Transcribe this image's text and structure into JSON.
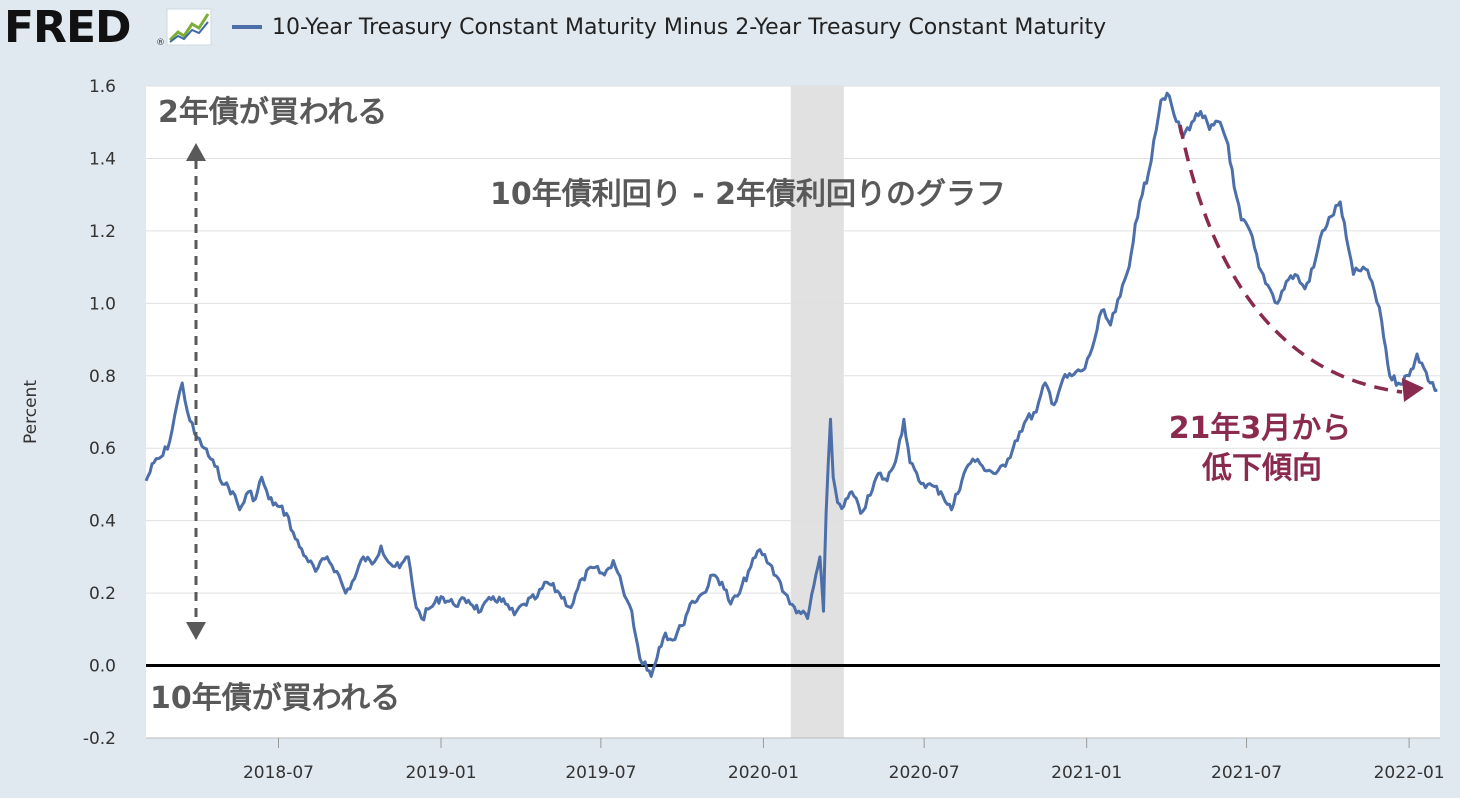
{
  "header": {
    "logo_text": "FRED",
    "logo_reg": "®",
    "logo_icon": "chart-line-icon"
  },
  "colors": {
    "series": "#4d6fa9",
    "recession": "#e1e1e1",
    "annotation_gray": "#595959",
    "annotation_red": "#8a2a4e",
    "background": "#e1e9f0"
  },
  "annotations": {
    "top_label": "2年債が買われる",
    "bottom_label": "10年債が買われる",
    "center_title": "10年債利回り - 2年債利回りのグラフ",
    "trend_line1": "21年3月から",
    "trend_line2": "低下傾向"
  },
  "chart_data": {
    "type": "line",
    "title": "",
    "xlabel": "",
    "ylabel": "Percent",
    "ylim": [
      -0.2,
      1.6
    ],
    "y_ticks": [
      "1.6",
      "1.4",
      "1.2",
      "1.0",
      "0.8",
      "0.6",
      "0.4",
      "0.2",
      "0.0",
      "-0.2"
    ],
    "x_ticks": [
      "2018-07",
      "2019-01",
      "2019-07",
      "2020-01",
      "2020-07",
      "2021-01",
      "2021-07",
      "2022-01"
    ],
    "xlim": [
      "2018-02-01",
      "2022-02-05"
    ],
    "grid": true,
    "legend": "top-left",
    "recession": {
      "start": "2020-02-01",
      "end": "2020-04-01"
    },
    "series": [
      {
        "name": "10-Year Treasury Constant Maturity Minus 2-Year Treasury Constant Maturity",
        "points": [
          [
            "2018-02-01",
            0.51
          ],
          [
            "2018-02-10",
            0.56
          ],
          [
            "2018-02-20",
            0.58
          ],
          [
            "2018-02-28",
            0.62
          ],
          [
            "2018-03-08",
            0.72
          ],
          [
            "2018-03-14",
            0.78
          ],
          [
            "2018-03-20",
            0.7
          ],
          [
            "2018-03-28",
            0.64
          ],
          [
            "2018-04-08",
            0.6
          ],
          [
            "2018-04-20",
            0.55
          ],
          [
            "2018-05-01",
            0.5
          ],
          [
            "2018-05-10",
            0.48
          ],
          [
            "2018-05-18",
            0.43
          ],
          [
            "2018-05-28",
            0.48
          ],
          [
            "2018-06-05",
            0.46
          ],
          [
            "2018-06-12",
            0.52
          ],
          [
            "2018-06-20",
            0.46
          ],
          [
            "2018-06-30",
            0.44
          ],
          [
            "2018-07-10",
            0.42
          ],
          [
            "2018-07-20",
            0.35
          ],
          [
            "2018-08-01",
            0.3
          ],
          [
            "2018-08-12",
            0.26
          ],
          [
            "2018-08-25",
            0.3
          ],
          [
            "2018-09-05",
            0.26
          ],
          [
            "2018-09-15",
            0.2
          ],
          [
            "2018-09-25",
            0.24
          ],
          [
            "2018-10-05",
            0.3
          ],
          [
            "2018-10-15",
            0.28
          ],
          [
            "2018-10-25",
            0.33
          ],
          [
            "2018-11-05",
            0.28
          ],
          [
            "2018-11-15",
            0.27
          ],
          [
            "2018-11-25",
            0.3
          ],
          [
            "2018-12-04",
            0.16
          ],
          [
            "2018-12-10",
            0.13
          ],
          [
            "2018-12-20",
            0.16
          ],
          [
            "2019-01-01",
            0.19
          ],
          [
            "2019-01-15",
            0.17
          ],
          [
            "2019-02-01",
            0.18
          ],
          [
            "2019-02-15",
            0.15
          ],
          [
            "2019-03-01",
            0.19
          ],
          [
            "2019-03-15",
            0.17
          ],
          [
            "2019-03-25",
            0.14
          ],
          [
            "2019-04-05",
            0.17
          ],
          [
            "2019-04-20",
            0.19
          ],
          [
            "2019-05-01",
            0.23
          ],
          [
            "2019-05-15",
            0.2
          ],
          [
            "2019-05-28",
            0.16
          ],
          [
            "2019-06-10",
            0.24
          ],
          [
            "2019-06-22",
            0.27
          ],
          [
            "2019-07-05",
            0.25
          ],
          [
            "2019-07-15",
            0.29
          ],
          [
            "2019-07-25",
            0.22
          ],
          [
            "2019-08-05",
            0.15
          ],
          [
            "2019-08-14",
            0.02
          ],
          [
            "2019-08-20",
            0.01
          ],
          [
            "2019-08-27",
            -0.03
          ],
          [
            "2019-09-05",
            0.05
          ],
          [
            "2019-09-12",
            0.09
          ],
          [
            "2019-09-20",
            0.07
          ],
          [
            "2019-10-01",
            0.11
          ],
          [
            "2019-10-10",
            0.17
          ],
          [
            "2019-10-25",
            0.2
          ],
          [
            "2019-11-05",
            0.25
          ],
          [
            "2019-11-15",
            0.23
          ],
          [
            "2019-11-25",
            0.17
          ],
          [
            "2019-12-05",
            0.2
          ],
          [
            "2019-12-15",
            0.26
          ],
          [
            "2019-12-28",
            0.32
          ],
          [
            "2020-01-08",
            0.28
          ],
          [
            "2020-01-18",
            0.24
          ],
          [
            "2020-01-25",
            0.2
          ],
          [
            "2020-01-31",
            0.17
          ],
          [
            "2020-02-10",
            0.15
          ],
          [
            "2020-02-20",
            0.13
          ],
          [
            "2020-02-27",
            0.22
          ],
          [
            "2020-03-05",
            0.3
          ],
          [
            "2020-03-09",
            0.15
          ],
          [
            "2020-03-12",
            0.42
          ],
          [
            "2020-03-17",
            0.68
          ],
          [
            "2020-03-20",
            0.52
          ],
          [
            "2020-03-25",
            0.45
          ],
          [
            "2020-04-01",
            0.44
          ],
          [
            "2020-04-10",
            0.48
          ],
          [
            "2020-04-20",
            0.42
          ],
          [
            "2020-05-01",
            0.47
          ],
          [
            "2020-05-10",
            0.53
          ],
          [
            "2020-05-20",
            0.51
          ],
          [
            "2020-06-01",
            0.59
          ],
          [
            "2020-06-08",
            0.68
          ],
          [
            "2020-06-15",
            0.56
          ],
          [
            "2020-06-25",
            0.51
          ],
          [
            "2020-07-05",
            0.5
          ],
          [
            "2020-07-20",
            0.48
          ],
          [
            "2020-08-01",
            0.43
          ],
          [
            "2020-08-15",
            0.53
          ],
          [
            "2020-08-25",
            0.57
          ],
          [
            "2020-09-05",
            0.55
          ],
          [
            "2020-09-20",
            0.53
          ],
          [
            "2020-10-01",
            0.55
          ],
          [
            "2020-10-12",
            0.62
          ],
          [
            "2020-10-25",
            0.68
          ],
          [
            "2020-11-05",
            0.7
          ],
          [
            "2020-11-15",
            0.78
          ],
          [
            "2020-11-25",
            0.72
          ],
          [
            "2020-12-05",
            0.79
          ],
          [
            "2020-12-15",
            0.8
          ],
          [
            "2020-12-30",
            0.82
          ],
          [
            "2021-01-10",
            0.9
          ],
          [
            "2021-01-18",
            0.98
          ],
          [
            "2021-01-28",
            0.94
          ],
          [
            "2021-02-08",
            1.02
          ],
          [
            "2021-02-18",
            1.1
          ],
          [
            "2021-02-25",
            1.22
          ],
          [
            "2021-03-05",
            1.3
          ],
          [
            "2021-03-12",
            1.36
          ],
          [
            "2021-03-18",
            1.45
          ],
          [
            "2021-03-26",
            1.56
          ],
          [
            "2021-04-02",
            1.58
          ],
          [
            "2021-04-10",
            1.52
          ],
          [
            "2021-04-20",
            1.46
          ],
          [
            "2021-04-30",
            1.5
          ],
          [
            "2021-05-10",
            1.53
          ],
          [
            "2021-05-20",
            1.48
          ],
          [
            "2021-06-01",
            1.5
          ],
          [
            "2021-06-10",
            1.44
          ],
          [
            "2021-06-17",
            1.32
          ],
          [
            "2021-06-25",
            1.23
          ],
          [
            "2021-07-05",
            1.2
          ],
          [
            "2021-07-15",
            1.1
          ],
          [
            "2021-07-25",
            1.05
          ],
          [
            "2021-08-05",
            1.0
          ],
          [
            "2021-08-15",
            1.06
          ],
          [
            "2021-08-25",
            1.08
          ],
          [
            "2021-09-05",
            1.04
          ],
          [
            "2021-09-15",
            1.1
          ],
          [
            "2021-09-25",
            1.2
          ],
          [
            "2021-10-05",
            1.24
          ],
          [
            "2021-10-15",
            1.28
          ],
          [
            "2021-10-22",
            1.18
          ],
          [
            "2021-10-30",
            1.08
          ],
          [
            "2021-11-10",
            1.1
          ],
          [
            "2021-11-20",
            1.06
          ],
          [
            "2021-12-01",
            0.95
          ],
          [
            "2021-12-10",
            0.8
          ],
          [
            "2021-12-20",
            0.78
          ],
          [
            "2022-01-01",
            0.8
          ],
          [
            "2022-01-10",
            0.86
          ],
          [
            "2022-01-18",
            0.82
          ],
          [
            "2022-01-25",
            0.78
          ],
          [
            "2022-02-02",
            0.76
          ]
        ]
      }
    ]
  }
}
